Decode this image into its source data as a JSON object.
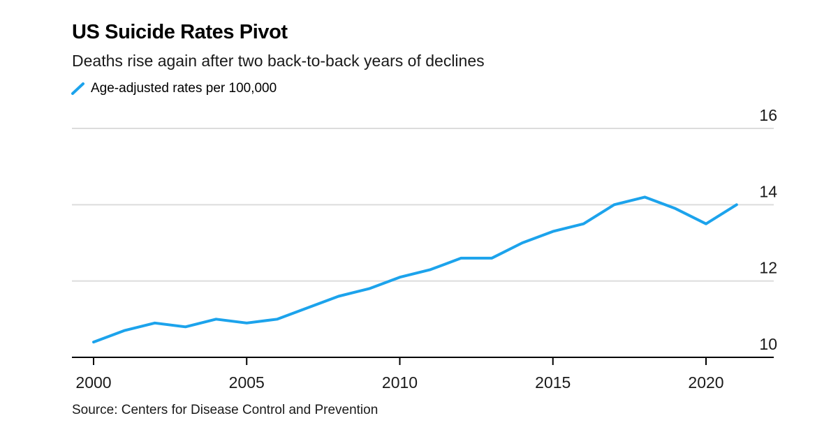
{
  "header": {
    "title": "US Suicide Rates Pivot",
    "subtitle": "Deaths rise again after two back-to-back years of declines"
  },
  "legend": {
    "label": "Age-adjusted rates per 100,000"
  },
  "source": "Source: Centers for Disease Control and Prevention",
  "colors": {
    "line": "#1CA3EC",
    "grid": "#dcdcdc",
    "axis": "#000000",
    "label_text": "#1a1a1a"
  },
  "chart_data": {
    "type": "line",
    "title": "US Suicide Rates Pivot",
    "subtitle": "Deaths rise again after two back-to-back years of declines",
    "series_name": "Age-adjusted rates per 100,000",
    "x": [
      2000,
      2001,
      2002,
      2003,
      2004,
      2005,
      2006,
      2007,
      2008,
      2009,
      2010,
      2011,
      2012,
      2013,
      2014,
      2015,
      2016,
      2017,
      2018,
      2019,
      2020,
      2021
    ],
    "values": [
      10.4,
      10.7,
      10.9,
      10.8,
      11.0,
      10.9,
      11.0,
      11.3,
      11.6,
      11.8,
      12.1,
      12.3,
      12.6,
      12.6,
      13.0,
      13.3,
      13.5,
      14.0,
      14.2,
      13.9,
      13.5,
      14.0
    ],
    "ylim": [
      10,
      16
    ],
    "y_ticks": [
      10,
      12,
      14,
      16
    ],
    "x_ticks": [
      2000,
      2005,
      2010,
      2015,
      2020
    ],
    "grid": "horizontal",
    "y_axis_position": "right",
    "legend_position": "top-left",
    "xlabel": "",
    "ylabel": "Age-adjusted rates per 100,000"
  }
}
